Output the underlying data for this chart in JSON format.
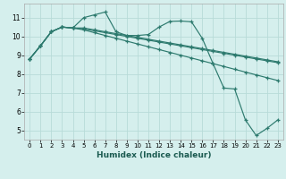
{
  "xlabel": "Humidex (Indice chaleur)",
  "background_color": "#d5efed",
  "grid_color": "#b8dbd8",
  "line_color": "#2d7a6e",
  "xlim": [
    -0.5,
    23.5
  ],
  "ylim": [
    4.5,
    11.75
  ],
  "xticks": [
    0,
    1,
    2,
    3,
    4,
    5,
    6,
    7,
    8,
    9,
    10,
    11,
    12,
    13,
    14,
    15,
    16,
    17,
    18,
    19,
    20,
    21,
    22,
    23
  ],
  "yticks": [
    5,
    6,
    7,
    8,
    9,
    10,
    11
  ],
  "series": [
    [
      8.8,
      9.5,
      10.25,
      10.5,
      10.45,
      11.0,
      11.15,
      11.3,
      10.25,
      10.05,
      10.05,
      10.1,
      10.5,
      10.8,
      10.82,
      10.78,
      9.9,
      8.55,
      7.25,
      7.2,
      5.55,
      4.72,
      5.1,
      5.55
    ],
    [
      8.8,
      9.5,
      10.25,
      10.5,
      10.45,
      10.45,
      10.35,
      10.25,
      10.15,
      10.05,
      9.95,
      9.85,
      9.75,
      9.65,
      9.55,
      9.45,
      9.35,
      9.25,
      9.15,
      9.05,
      8.95,
      8.85,
      8.75,
      8.65
    ],
    [
      8.8,
      9.5,
      10.25,
      10.5,
      10.45,
      10.4,
      10.3,
      10.2,
      10.1,
      10.0,
      9.9,
      9.8,
      9.7,
      9.6,
      9.5,
      9.4,
      9.3,
      9.2,
      9.1,
      9.0,
      8.9,
      8.8,
      8.7,
      8.6
    ],
    [
      8.8,
      9.5,
      10.25,
      10.5,
      10.45,
      10.35,
      10.2,
      10.05,
      9.9,
      9.75,
      9.6,
      9.45,
      9.3,
      9.15,
      9.0,
      8.85,
      8.7,
      8.55,
      8.4,
      8.25,
      8.1,
      7.95,
      7.8,
      7.65
    ]
  ]
}
